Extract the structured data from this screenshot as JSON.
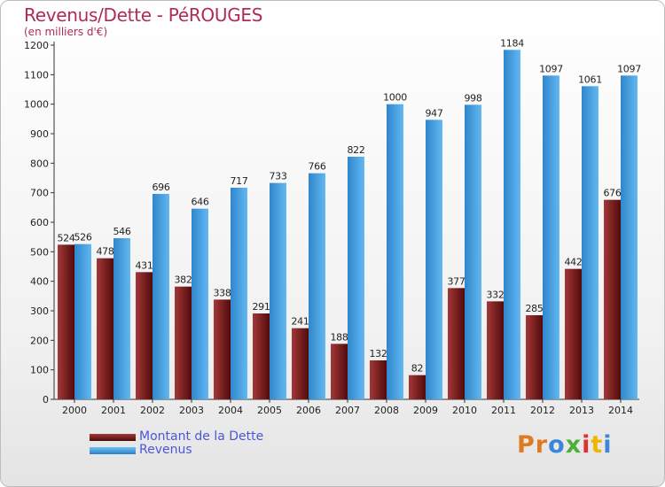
{
  "chart_data": {
    "type": "bar",
    "title": "Revenus/Dette - PéROUGES",
    "subtitle": "(en milliers d'€)",
    "categories": [
      "2000",
      "2001",
      "2002",
      "2003",
      "2004",
      "2005",
      "2006",
      "2007",
      "2008",
      "2009",
      "2010",
      "2011",
      "2012",
      "2013",
      "2014"
    ],
    "series": [
      {
        "name": "Montant de la Dette",
        "color": "#7a1e1e",
        "values": [
          524,
          478,
          431,
          382,
          338,
          291,
          241,
          188,
          132,
          82,
          377,
          332,
          285,
          442,
          676
        ]
      },
      {
        "name": "Revenus",
        "color": "#4aa3e6",
        "values": [
          526,
          546,
          696,
          646,
          717,
          733,
          766,
          822,
          1000,
          947,
          998,
          1184,
          1097,
          1061,
          1097
        ]
      }
    ],
    "ylim": [
      0,
      1200
    ],
    "yticks": [
      0,
      100,
      200,
      300,
      400,
      500,
      600,
      700,
      800,
      900,
      1000,
      1100,
      1200
    ],
    "grid": false,
    "legend": "bottom-left"
  },
  "brand": {
    "text": "ProxIti",
    "letters": [
      "P",
      "r",
      "o",
      "x",
      "i",
      "t",
      "i"
    ],
    "colors": [
      "#e07a1f",
      "#e07a1f",
      "#3a86d8",
      "#4caf3a",
      "#e0312f",
      "#f0b500",
      "#3a86d8"
    ]
  }
}
